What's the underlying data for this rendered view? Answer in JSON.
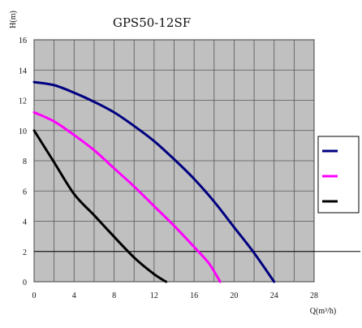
{
  "chart_data": {
    "type": "line",
    "title": "GPS50-12SF",
    "xlabel": "Q(m³/h)",
    "ylabel": "H(m)",
    "xlim": [
      0,
      28
    ],
    "ylim": [
      0,
      16
    ],
    "x_ticks": [
      "0",
      "4",
      "8",
      "12",
      "16",
      "20",
      "24",
      "28"
    ],
    "y_ticks": [
      "0",
      "2",
      "4",
      "6",
      "8",
      "10",
      "12",
      "14",
      "16"
    ],
    "grid": true,
    "reference_line_y": 2,
    "legend_position": "right",
    "plot_background": "#c0c0c0",
    "series": [
      {
        "color": "#000080",
        "x": [
          0,
          2,
          4,
          6,
          8,
          10,
          12,
          14,
          16,
          18,
          20,
          22,
          24
        ],
        "y": [
          13.2,
          13.0,
          12.5,
          11.9,
          11.2,
          10.3,
          9.3,
          8.1,
          6.8,
          5.3,
          3.6,
          1.9,
          0
        ]
      },
      {
        "color": "#ff00ff",
        "x": [
          0,
          2,
          4,
          6,
          8,
          10,
          12,
          14,
          16,
          17.5,
          18.6
        ],
        "y": [
          11.2,
          10.6,
          9.7,
          8.7,
          7.5,
          6.3,
          5.0,
          3.7,
          2.3,
          1.2,
          0
        ]
      },
      {
        "color": "#000000",
        "x": [
          0,
          2,
          4,
          6,
          7.4,
          10,
          12,
          13.2
        ],
        "y": [
          10.0,
          7.9,
          5.8,
          4.4,
          3.4,
          1.6,
          0.5,
          0
        ]
      }
    ]
  }
}
